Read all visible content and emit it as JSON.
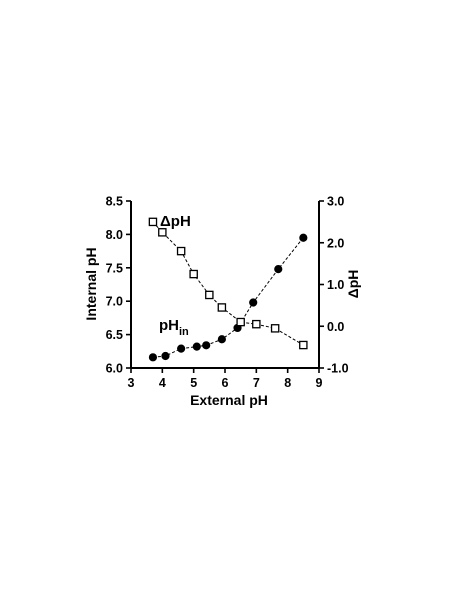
{
  "chart_data": {
    "type": "scatter",
    "xlabel": "External pH",
    "ylabel": "Internal pH",
    "y2label": "ΔpH",
    "xlim": [
      3,
      9
    ],
    "ylim": [
      6.0,
      8.5
    ],
    "y2lim": [
      -1.0,
      3.0
    ],
    "xticks": [
      "3",
      "4",
      "5",
      "6",
      "7",
      "8",
      "9"
    ],
    "yticks": [
      "6.0",
      "6.5",
      "7.0",
      "7.5",
      "8.0",
      "8.5"
    ],
    "y2ticks": [
      "-1.0",
      "0.0",
      "1.0",
      "2.0",
      "3.0"
    ],
    "grid": false,
    "series": [
      {
        "name": "pHin",
        "axis": "left",
        "marker": "filled-circle",
        "x": [
          3.7,
          4.1,
          4.6,
          5.1,
          5.4,
          5.9,
          6.4,
          6.9,
          7.7,
          8.5
        ],
        "y": [
          6.16,
          6.18,
          6.29,
          6.32,
          6.34,
          6.43,
          6.6,
          6.98,
          7.48,
          7.95
        ]
      },
      {
        "name": "ΔpH",
        "axis": "right",
        "marker": "open-square",
        "x": [
          3.7,
          4.0,
          4.6,
          5.0,
          5.5,
          5.9,
          6.5,
          7.0,
          7.6,
          8.5
        ],
        "y": [
          2.5,
          2.25,
          1.8,
          1.25,
          0.75,
          0.45,
          0.1,
          0.05,
          -0.05,
          -0.45
        ]
      }
    ],
    "annotations": [
      {
        "id": "dph",
        "text": "ΔpH"
      },
      {
        "id": "phin",
        "main": "pH",
        "sub": "in"
      }
    ]
  }
}
